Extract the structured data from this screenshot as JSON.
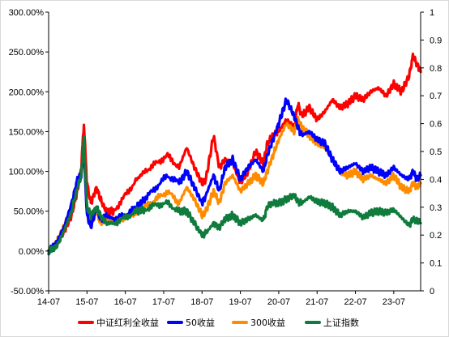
{
  "chart_data": {
    "type": "line",
    "title": "",
    "xlabel": "",
    "ylabel": "",
    "ylim": [
      -0.5,
      3.0
    ],
    "y2lim": [
      0,
      1
    ],
    "y_tick_labels": [
      "-50.00%",
      "0.00%",
      "50.00%",
      "100.00%",
      "150.00%",
      "200.00%",
      "250.00%",
      "300.00%"
    ],
    "y2_tick_labels": [
      "0",
      "0.1",
      "0.2",
      "0.3",
      "0.4",
      "0.5",
      "0.6",
      "0.7",
      "0.8",
      "0.9",
      "1"
    ],
    "x_tick_labels": [
      "14-07",
      "15-07",
      "16-07",
      "17-07",
      "18-07",
      "19-07",
      "20-07",
      "21-07",
      "22-07",
      "23-07"
    ],
    "x_range": [
      2014.5,
      2024.2
    ],
    "grid": false,
    "legend_position": "bottom",
    "series": [
      {
        "name": "中证红利全收益",
        "color": "#ff0000",
        "x": [
          2014.5,
          2014.7,
          2014.9,
          2015.1,
          2015.25,
          2015.35,
          2015.42,
          2015.5,
          2015.6,
          2015.75,
          2015.85,
          2016.0,
          2016.2,
          2016.5,
          2016.8,
          2017.0,
          2017.3,
          2017.6,
          2017.9,
          2018.1,
          2018.3,
          2018.5,
          2018.6,
          2018.8,
          2018.95,
          2019.1,
          2019.3,
          2019.5,
          2019.7,
          2019.9,
          2020.1,
          2020.2,
          2020.35,
          2020.5,
          2020.7,
          2020.9,
          2021.0,
          2021.1,
          2021.3,
          2021.5,
          2021.7,
          2021.9,
          2022.1,
          2022.3,
          2022.5,
          2022.7,
          2022.9,
          2023.1,
          2023.3,
          2023.5,
          2023.7,
          2023.9,
          2024.0,
          2024.1,
          2024.2
        ],
        "values": [
          0.0,
          0.08,
          0.25,
          0.45,
          0.75,
          1.05,
          1.6,
          0.85,
          0.6,
          0.8,
          0.65,
          0.5,
          0.5,
          0.7,
          0.9,
          1.0,
          1.1,
          1.2,
          1.05,
          1.3,
          1.05,
          0.85,
          0.9,
          1.45,
          1.05,
          1.15,
          1.1,
          0.85,
          1.0,
          1.25,
          1.1,
          1.35,
          1.45,
          1.5,
          1.65,
          1.55,
          1.85,
          1.7,
          1.8,
          1.65,
          1.75,
          1.9,
          1.8,
          1.85,
          1.95,
          1.9,
          2.0,
          2.05,
          1.95,
          2.1,
          2.0,
          2.2,
          2.45,
          2.35,
          2.25
        ]
      },
      {
        "name": "50收益",
        "color": "#0000ff",
        "x": [
          2014.5,
          2014.7,
          2014.9,
          2015.1,
          2015.25,
          2015.35,
          2015.42,
          2015.5,
          2015.6,
          2015.75,
          2015.85,
          2016.0,
          2016.2,
          2016.5,
          2016.8,
          2017.0,
          2017.3,
          2017.6,
          2017.9,
          2018.1,
          2018.3,
          2018.5,
          2018.6,
          2018.8,
          2018.95,
          2019.1,
          2019.3,
          2019.5,
          2019.7,
          2019.9,
          2020.1,
          2020.2,
          2020.35,
          2020.5,
          2020.7,
          2020.9,
          2021.0,
          2021.1,
          2021.3,
          2021.5,
          2021.7,
          2021.9,
          2022.1,
          2022.3,
          2022.5,
          2022.7,
          2022.9,
          2023.1,
          2023.3,
          2023.5,
          2023.7,
          2023.9,
          2024.0,
          2024.1,
          2024.2
        ],
        "values": [
          0.0,
          0.1,
          0.3,
          0.6,
          0.9,
          0.95,
          1.25,
          0.45,
          0.3,
          0.55,
          0.4,
          0.45,
          0.4,
          0.45,
          0.55,
          0.65,
          0.8,
          0.95,
          0.85,
          1.0,
          0.8,
          0.6,
          0.7,
          0.95,
          0.75,
          1.05,
          1.15,
          0.9,
          1.05,
          1.15,
          1.0,
          1.2,
          1.4,
          1.6,
          1.9,
          1.7,
          1.55,
          1.45,
          1.5,
          1.4,
          1.35,
          1.15,
          1.0,
          1.05,
          1.1,
          1.0,
          1.05,
          1.0,
          0.95,
          1.05,
          0.95,
          0.9,
          1.0,
          0.9,
          0.95
        ]
      },
      {
        "name": "300收益",
        "color": "#ff8c00",
        "x": [
          2014.5,
          2014.7,
          2014.9,
          2015.1,
          2015.25,
          2015.35,
          2015.42,
          2015.5,
          2015.6,
          2015.75,
          2015.85,
          2016.0,
          2016.2,
          2016.5,
          2016.8,
          2017.0,
          2017.3,
          2017.6,
          2017.9,
          2018.1,
          2018.3,
          2018.5,
          2018.6,
          2018.8,
          2018.95,
          2019.1,
          2019.3,
          2019.5,
          2019.7,
          2019.9,
          2020.1,
          2020.2,
          2020.35,
          2020.5,
          2020.7,
          2020.9,
          2021.0,
          2021.1,
          2021.3,
          2021.5,
          2021.7,
          2021.9,
          2022.1,
          2022.3,
          2022.5,
          2022.7,
          2022.9,
          2023.1,
          2023.3,
          2023.5,
          2023.7,
          2023.9,
          2024.0,
          2024.1,
          2024.2
        ],
        "values": [
          0.0,
          0.1,
          0.3,
          0.55,
          0.85,
          0.95,
          1.2,
          0.5,
          0.3,
          0.5,
          0.35,
          0.4,
          0.38,
          0.42,
          0.5,
          0.55,
          0.65,
          0.75,
          0.6,
          0.8,
          0.65,
          0.45,
          0.5,
          0.75,
          0.6,
          0.85,
          0.95,
          0.75,
          0.85,
          0.95,
          0.85,
          1.0,
          1.2,
          1.4,
          1.6,
          1.5,
          1.65,
          1.55,
          1.45,
          1.35,
          1.3,
          1.15,
          1.0,
          0.95,
          1.0,
          0.9,
          0.95,
          0.9,
          0.85,
          0.95,
          0.8,
          0.75,
          0.85,
          0.8,
          0.85
        ]
      },
      {
        "name": "上证指数",
        "color": "#0f7b3d",
        "x": [
          2014.5,
          2014.7,
          2014.9,
          2015.1,
          2015.25,
          2015.35,
          2015.42,
          2015.5,
          2015.6,
          2015.75,
          2015.85,
          2016.0,
          2016.2,
          2016.5,
          2016.8,
          2017.0,
          2017.3,
          2017.6,
          2017.9,
          2018.1,
          2018.3,
          2018.5,
          2018.6,
          2018.8,
          2018.95,
          2019.1,
          2019.3,
          2019.5,
          2019.7,
          2019.9,
          2020.1,
          2020.2,
          2020.35,
          2020.5,
          2020.7,
          2020.9,
          2021.0,
          2021.1,
          2021.3,
          2021.5,
          2021.7,
          2021.9,
          2022.1,
          2022.3,
          2022.5,
          2022.7,
          2022.9,
          2023.1,
          2023.3,
          2023.5,
          2023.7,
          2023.9,
          2024.0,
          2024.1,
          2024.2
        ],
        "values": [
          0.0,
          0.05,
          0.25,
          0.5,
          0.8,
          0.95,
          1.4,
          0.55,
          0.45,
          0.55,
          0.45,
          0.35,
          0.35,
          0.42,
          0.5,
          0.52,
          0.58,
          0.6,
          0.5,
          0.5,
          0.35,
          0.2,
          0.22,
          0.35,
          0.3,
          0.4,
          0.45,
          0.35,
          0.4,
          0.45,
          0.38,
          0.55,
          0.6,
          0.6,
          0.65,
          0.7,
          0.62,
          0.6,
          0.68,
          0.62,
          0.6,
          0.55,
          0.45,
          0.5,
          0.5,
          0.42,
          0.48,
          0.5,
          0.48,
          0.52,
          0.42,
          0.32,
          0.4,
          0.38,
          0.35
        ]
      }
    ]
  }
}
